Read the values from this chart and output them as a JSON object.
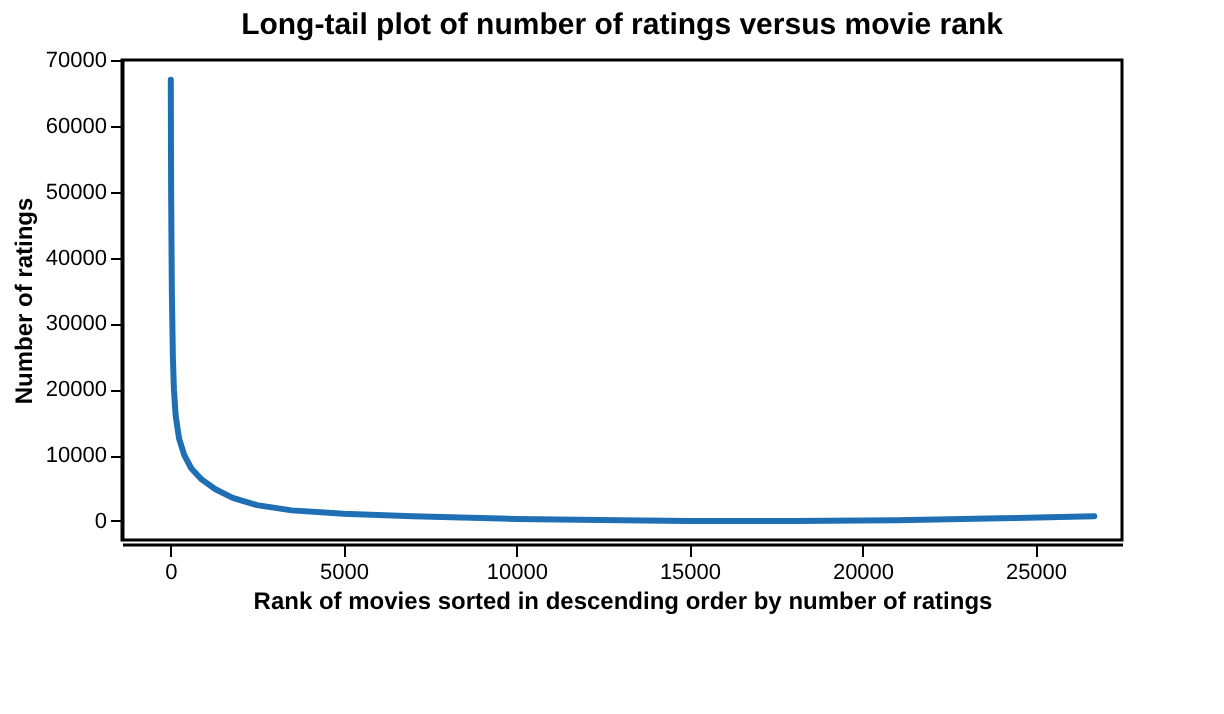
{
  "chart_data": {
    "type": "line",
    "title": "Long-tail plot of number of ratings versus movie rank",
    "xlabel": "Rank of movies sorted in descending order by number of ratings",
    "ylabel": "Number of ratings",
    "x": [
      10,
      20,
      40,
      70,
      100,
      150,
      250,
      400,
      600,
      900,
      1300,
      1800,
      2500,
      3500,
      5000,
      7000,
      10000,
      13000,
      15000,
      18000,
      21000,
      24000,
      26700
    ],
    "series": [
      {
        "color": "#1f6fb4",
        "values": [
          67000,
          50000,
          35000,
          25000,
          20000,
          16000,
          12500,
          10000,
          8000,
          6300,
          4800,
          3500,
          2400,
          1600,
          1100,
          700,
          300,
          100,
          0,
          0,
          100,
          400,
          700
        ]
      }
    ],
    "xlim": [
      -1400,
      27500
    ],
    "ylim": [
      -2900,
      70000
    ],
    "xticks": [
      0,
      5000,
      10000,
      15000,
      20000,
      25000
    ],
    "yticks": [
      0,
      10000,
      20000,
      30000,
      40000,
      50000,
      60000,
      70000
    ],
    "grid": false,
    "legend": false,
    "marker": "none",
    "line_style": "solid"
  }
}
